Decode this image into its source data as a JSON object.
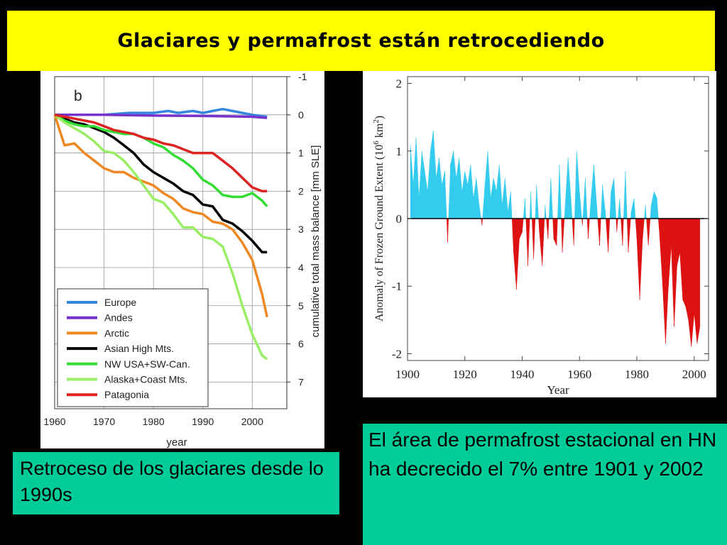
{
  "title": "Glaciares y permafrost están retrocediendo",
  "captions": {
    "left": "Retroceso de los glaciares desde lo 1990s",
    "right": "El área de permafrost estacional en  HN ha decrecido el 7% entre 1901 y 2002"
  },
  "colors": {
    "title_bg": "#ffff00",
    "caption_bg": "#00cc99",
    "positive_fill": "#33ccee",
    "negative_fill": "#dd1111"
  },
  "chart_data": [
    {
      "type": "line",
      "panel_label": "b",
      "xlabel": "year",
      "ylabel": "cumulative total mass balance [mm SLE]",
      "xlim": [
        1960,
        2007
      ],
      "ylim": [
        -1,
        7.7
      ],
      "y_inverted": true,
      "y_axis_side": "right",
      "x_ticks": [
        1960,
        1970,
        1980,
        1990,
        2000
      ],
      "y_ticks": [
        -1,
        0,
        1,
        2,
        3,
        4,
        5,
        6,
        7
      ],
      "grid": true,
      "legend_position": "bottom-left",
      "series": [
        {
          "name": "Europe",
          "color": "#3388dd",
          "x": [
            1960,
            1965,
            1970,
            1975,
            1980,
            1983,
            1985,
            1988,
            1990,
            1992,
            1994,
            1996,
            1998,
            2000,
            2003
          ],
          "y": [
            0,
            0,
            0,
            -0.05,
            -0.05,
            -0.1,
            -0.05,
            -0.1,
            -0.05,
            -0.1,
            -0.15,
            -0.1,
            -0.05,
            0.0,
            0.05
          ]
        },
        {
          "name": "Andes",
          "color": "#7733cc",
          "x": [
            1960,
            1970,
            1980,
            1990,
            2000,
            2003
          ],
          "y": [
            0,
            0,
            0.02,
            0.03,
            0.05,
            0.08
          ]
        },
        {
          "name": "Arctic",
          "color": "#ee8822",
          "x": [
            1960,
            1962,
            1964,
            1966,
            1968,
            1970,
            1972,
            1974,
            1976,
            1978,
            1980,
            1982,
            1984,
            1986,
            1988,
            1990,
            1992,
            1994,
            1996,
            1998,
            2000,
            2002,
            2003
          ],
          "y": [
            0,
            0.8,
            0.75,
            1.0,
            1.2,
            1.4,
            1.5,
            1.5,
            1.65,
            1.75,
            1.85,
            2.05,
            2.2,
            2.45,
            2.55,
            2.6,
            2.8,
            2.85,
            3.0,
            3.35,
            3.8,
            4.7,
            5.3
          ]
        },
        {
          "name": "Asian High Mts.",
          "color": "#000000",
          "x": [
            1960,
            1962,
            1964,
            1966,
            1968,
            1970,
            1972,
            1974,
            1976,
            1978,
            1980,
            1982,
            1984,
            1986,
            1988,
            1990,
            1992,
            1994,
            1996,
            1998,
            2000,
            2002,
            2003
          ],
          "y": [
            0,
            0.1,
            0.2,
            0.25,
            0.35,
            0.45,
            0.6,
            0.8,
            1.0,
            1.3,
            1.5,
            1.65,
            1.8,
            2.0,
            2.1,
            2.35,
            2.4,
            2.75,
            2.85,
            3.05,
            3.3,
            3.6,
            3.6
          ]
        },
        {
          "name": "NW USA+SW-Can.",
          "color": "#33dd33",
          "x": [
            1960,
            1962,
            1964,
            1966,
            1968,
            1970,
            1972,
            1974,
            1976,
            1978,
            1980,
            1982,
            1984,
            1986,
            1988,
            1990,
            1992,
            1994,
            1996,
            1998,
            2000,
            2002,
            2003
          ],
          "y": [
            0,
            0.15,
            0.25,
            0.3,
            0.3,
            0.4,
            0.45,
            0.5,
            0.5,
            0.6,
            0.75,
            0.85,
            1.05,
            1.2,
            1.4,
            1.7,
            1.85,
            2.1,
            2.15,
            2.15,
            2.05,
            2.25,
            2.4
          ]
        },
        {
          "name": "Alaska+Coast Mts.",
          "color": "#99ee66",
          "x": [
            1960,
            1962,
            1964,
            1966,
            1968,
            1970,
            1972,
            1974,
            1976,
            1978,
            1980,
            1982,
            1984,
            1986,
            1988,
            1990,
            1992,
            1994,
            1996,
            1998,
            2000,
            2002,
            2003
          ],
          "y": [
            0,
            0.2,
            0.35,
            0.5,
            0.7,
            0.95,
            1.0,
            1.2,
            1.5,
            1.85,
            2.2,
            2.3,
            2.6,
            2.95,
            2.95,
            3.2,
            3.25,
            3.45,
            4.15,
            5.0,
            5.75,
            6.3,
            6.4
          ]
        },
        {
          "name": "Patagonia",
          "color": "#dd2222",
          "x": [
            1960,
            1962,
            1964,
            1966,
            1968,
            1970,
            1972,
            1974,
            1976,
            1978,
            1980,
            1982,
            1984,
            1986,
            1988,
            1990,
            1992,
            1994,
            1996,
            1998,
            2000,
            2002,
            2003
          ],
          "y": [
            0,
            0.05,
            0.1,
            0.15,
            0.2,
            0.3,
            0.4,
            0.45,
            0.5,
            0.6,
            0.65,
            0.75,
            0.8,
            0.9,
            1.0,
            1.0,
            1.0,
            1.2,
            1.4,
            1.65,
            1.9,
            2.0,
            2.0
          ]
        }
      ]
    },
    {
      "type": "area",
      "xlabel": "Year",
      "ylabel": "Anomaly of Frozen Ground Extent (10⁶ km²)",
      "ylabel_base": "Anomaly of Frozen Ground Extent (10",
      "ylabel_exp": "6",
      "ylabel_tail": " km",
      "ylabel_exp2": "2",
      "ylabel_close": ")",
      "xlim": [
        1900,
        2005
      ],
      "ylim": [
        -2.1,
        2.1
      ],
      "x_ticks": [
        1900,
        1920,
        1940,
        1960,
        1980,
        2000
      ],
      "y_ticks": [
        2,
        1,
        0,
        -1,
        -2
      ],
      "y_tick_labels": [
        "2",
        "1",
        "0",
        "-1",
        "-2"
      ],
      "series": [
        {
          "name": "",
          "x": [
            1901,
            1902,
            1903,
            1904,
            1905,
            1906,
            1907,
            1908,
            1909,
            1910,
            1911,
            1912,
            1913,
            1914,
            1915,
            1916,
            1917,
            1918,
            1919,
            1920,
            1921,
            1922,
            1923,
            1924,
            1925,
            1926,
            1927,
            1928,
            1929,
            1930,
            1931,
            1932,
            1933,
            1934,
            1935,
            1936,
            1937,
            1938,
            1939,
            1940,
            1941,
            1942,
            1943,
            1944,
            1945,
            1946,
            1947,
            1948,
            1949,
            1950,
            1951,
            1952,
            1953,
            1954,
            1955,
            1956,
            1957,
            1958,
            1959,
            1960,
            1961,
            1962,
            1963,
            1964,
            1965,
            1966,
            1967,
            1968,
            1969,
            1970,
            1971,
            1972,
            1973,
            1974,
            1975,
            1976,
            1977,
            1978,
            1979,
            1980,
            1981,
            1982,
            1983,
            1984,
            1985,
            1986,
            1987,
            1988,
            1989,
            1990,
            1991,
            1992,
            1993,
            1994,
            1995,
            1996,
            1997,
            1998,
            1999,
            2000,
            2001,
            2002
          ],
          "y": [
            1.1,
            0.5,
            1.2,
            0.3,
            1.0,
            0.7,
            0.4,
            1.0,
            1.3,
            0.6,
            0.9,
            0.5,
            0.7,
            -0.35,
            0.8,
            1.0,
            0.6,
            0.9,
            0.4,
            0.7,
            0.5,
            0.8,
            0.3,
            0.6,
            0.2,
            -0.1,
            0.5,
            1.0,
            0.3,
            0.6,
            0.4,
            0.8,
            0.2,
            0.6,
            0.1,
            0.4,
            -0.5,
            -1.05,
            -0.3,
            -0.2,
            0.3,
            -0.7,
            0.4,
            -0.6,
            0.5,
            -0.2,
            -0.7,
            0.2,
            -0.3,
            0.6,
            -0.3,
            -0.4,
            0.8,
            -0.5,
            0.2,
            0.9,
            0.3,
            -0.4,
            1.0,
            0.4,
            -0.1,
            0.6,
            -0.3,
            0.3,
            0.8,
            0.2,
            -0.4,
            0.5,
            0.1,
            -0.5,
            0.4,
            0.6,
            -0.2,
            0.3,
            -0.4,
            0.7,
            -0.5,
            0.1,
            0.3,
            -0.3,
            -1.2,
            -0.3,
            0.2,
            -0.4,
            0.2,
            0.4,
            0.3,
            -0.3,
            -1.0,
            -1.85,
            -1.0,
            -0.4,
            -1.6,
            -0.7,
            -0.5,
            -1.2,
            -1.3,
            -1.5,
            -1.9,
            -1.4,
            -1.85,
            -1.6
          ]
        }
      ]
    }
  ]
}
